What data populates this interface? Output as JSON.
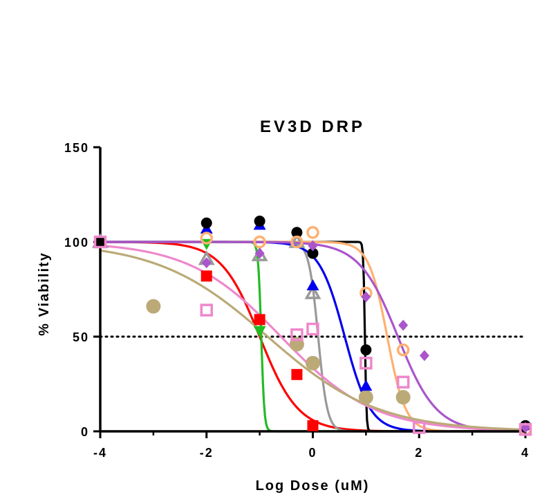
{
  "chart_data": {
    "type": "scatter",
    "title": "EV3D DRP",
    "xlabel": "Log Dose (uM)",
    "ylabel": "% Viability",
    "xlim": [
      -4,
      4
    ],
    "ylim": [
      0,
      150
    ],
    "x_ticks": [
      "-4",
      "-2",
      "0",
      "2",
      "4"
    ],
    "y_ticks": [
      "0",
      "50",
      "100",
      "150"
    ],
    "reference_line": {
      "y": 50,
      "style": "dotted"
    },
    "grid": false,
    "legend": "none",
    "series": [
      {
        "color": "#ff0000",
        "marker": "square-filled",
        "ic50": -1.0,
        "hill": -1.2,
        "points": [
          [
            -4,
            100
          ],
          [
            -2,
            82
          ],
          [
            -1,
            59
          ],
          [
            -0.3,
            30
          ],
          [
            0,
            3
          ]
        ]
      },
      {
        "color": "#22bb22",
        "marker": "triangle-down-filled",
        "ic50": -0.97,
        "hill": -15,
        "points": [
          [
            -4,
            100
          ],
          [
            -2,
            99
          ],
          [
            -1,
            53
          ]
        ]
      },
      {
        "color": "#999999",
        "marker": "triangle-open",
        "ic50": 0.1,
        "hill": -5,
        "points": [
          [
            -4,
            100
          ],
          [
            -2,
            91
          ],
          [
            -1,
            93
          ],
          [
            -0.3,
            100
          ],
          [
            0,
            73
          ]
        ]
      },
      {
        "color": "#0000ee",
        "marker": "triangle-filled",
        "ic50": 0.6,
        "hill": -1.8,
        "points": [
          [
            -4,
            100
          ],
          [
            -2,
            107
          ],
          [
            -1,
            109
          ],
          [
            0,
            77
          ],
          [
            1,
            24
          ]
        ]
      },
      {
        "color": "#000000",
        "marker": "circle-filled",
        "ic50": 0.98,
        "hill": -30,
        "points": [
          [
            -4,
            100
          ],
          [
            -2,
            110
          ],
          [
            -1,
            111
          ],
          [
            -0.3,
            105
          ],
          [
            0,
            94
          ],
          [
            1,
            43
          ],
          [
            4,
            3
          ]
        ]
      },
      {
        "color": "#ffb070",
        "marker": "circle-open",
        "ic50": 1.4,
        "hill": -2.5,
        "points": [
          [
            -2,
            102
          ],
          [
            -1,
            100
          ],
          [
            -0.3,
            100
          ],
          [
            0,
            105
          ],
          [
            1,
            73
          ],
          [
            1.7,
            43
          ],
          [
            4,
            1
          ]
        ]
      },
      {
        "color": "#aa55cc",
        "marker": "diamond-filled",
        "ic50": 1.6,
        "hill": -1.2,
        "points": [
          [
            -2,
            89
          ],
          [
            -1,
            94
          ],
          [
            0,
            98
          ],
          [
            1,
            71
          ],
          [
            1.7,
            56
          ],
          [
            2.1,
            40
          ],
          [
            4,
            2
          ]
        ]
      },
      {
        "color": "#ee88cc",
        "marker": "square-open",
        "ic50": -0.6,
        "hill": -0.5,
        "points": [
          [
            -4,
            100
          ],
          [
            -2,
            64
          ],
          [
            -0.3,
            51
          ],
          [
            0,
            54
          ],
          [
            1,
            36
          ],
          [
            1.7,
            26
          ],
          [
            2,
            2
          ],
          [
            4,
            1
          ]
        ]
      },
      {
        "color": "#bbaa77",
        "marker": "circle-filled",
        "ic50": -0.85,
        "hill": -0.42,
        "points": [
          [
            -3,
            66
          ],
          [
            -0.3,
            46
          ],
          [
            0,
            36
          ],
          [
            1,
            18
          ],
          [
            1.7,
            18
          ]
        ]
      }
    ]
  }
}
